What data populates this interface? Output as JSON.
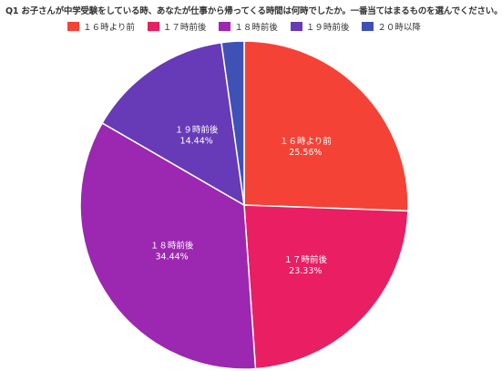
{
  "chart_data": {
    "type": "pie",
    "title": "Q1 お子さんが中学受験をしている時、あなたが仕事から帰ってくる時間は何時でしたか。一番当てはまるものを選んでください。",
    "legend_position": "top",
    "slices": [
      {
        "name": "１６時より前",
        "value": 25.56,
        "label": "25.56%",
        "color": "#F44336",
        "show_label": true
      },
      {
        "name": "１７時前後",
        "value": 23.33,
        "label": "23.33%",
        "color": "#E91E63",
        "show_label": true
      },
      {
        "name": "１８時前後",
        "value": 34.44,
        "label": "34.44%",
        "color": "#9C27B0",
        "show_label": true
      },
      {
        "name": "１９時前後",
        "value": 14.44,
        "label": "14.44%",
        "color": "#673AB7",
        "show_label": true
      },
      {
        "name": "２０時以降",
        "value": 2.22,
        "label": "",
        "color": "#3F51B5",
        "show_label": false
      }
    ]
  }
}
